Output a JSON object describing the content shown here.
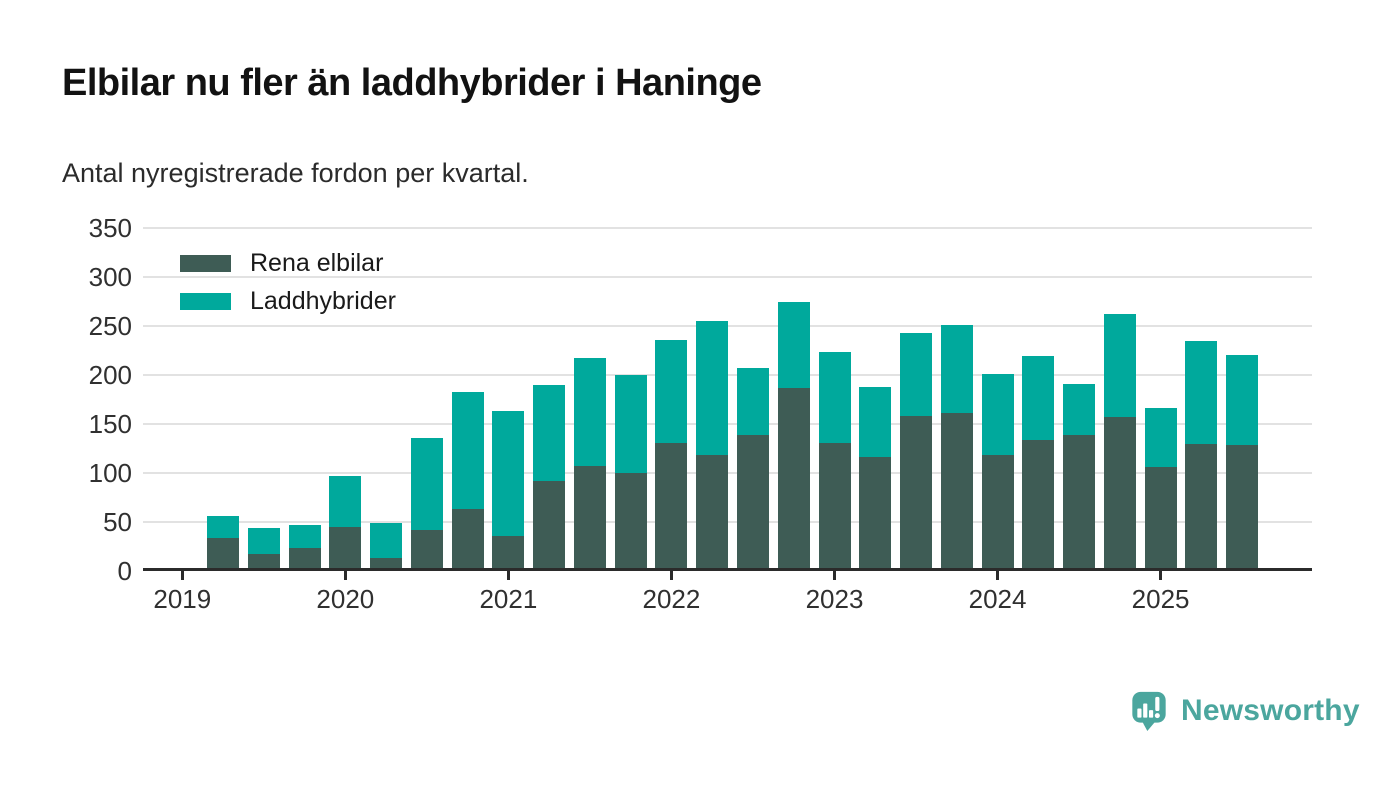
{
  "title": "Elbilar nu fler än laddhybrider i Haninge",
  "subtitle": "Antal nyregistrerade fordon per kvartal.",
  "colors": {
    "elbilar": "#3E5C55",
    "laddhybrider": "#00A99C",
    "grid": "#E2E2E2",
    "axis": "#2B2B2B",
    "brand_teal": "#4BA69E"
  },
  "legend": {
    "items": [
      {
        "label": "Rena elbilar",
        "color": "#3E5C55"
      },
      {
        "label": "Laddhybrider",
        "color": "#00A99C"
      }
    ]
  },
  "footer": {
    "brand_name": "Newsworthy",
    "logo_icon": "newsworthy-pin-barchart-icon"
  },
  "chart_data": {
    "type": "bar",
    "stacked": true,
    "title": "Elbilar nu fler än laddhybrider i Haninge",
    "subtitle": "Antal nyregistrerade fordon per kvartal.",
    "xlabel": "",
    "ylabel": "",
    "ylim": [
      0,
      350
    ],
    "yticks": [
      0,
      50,
      100,
      150,
      200,
      250,
      300,
      350
    ],
    "year_ticks": [
      "2019",
      "2020",
      "2021",
      "2022",
      "2023",
      "2024",
      "2025"
    ],
    "grid": "horizontal",
    "legend_position": "top-left-inside",
    "categories": [
      "2019 Q2",
      "2019 Q3",
      "2019 Q4",
      "2020 Q1",
      "2020 Q2",
      "2020 Q3",
      "2020 Q4",
      "2021 Q1",
      "2021 Q2",
      "2021 Q3",
      "2021 Q4",
      "2022 Q1",
      "2022 Q2",
      "2022 Q3",
      "2022 Q4",
      "2023 Q1",
      "2023 Q2",
      "2023 Q3",
      "2023 Q4",
      "2024 Q1",
      "2024 Q2",
      "2024 Q3",
      "2024 Q4",
      "2025 Q1",
      "2025 Q2",
      "2025 Q3"
    ],
    "series": [
      {
        "name": "Rena elbilar",
        "color": "#3E5C55",
        "values": [
          34,
          17,
          23,
          45,
          13,
          42,
          63,
          36,
          92,
          107,
          100,
          131,
          118,
          139,
          187,
          131,
          116,
          158,
          161,
          118,
          134,
          139,
          157,
          106,
          130,
          129
        ]
      },
      {
        "name": "Laddhybrider",
        "color": "#00A99C",
        "values": [
          22,
          27,
          24,
          52,
          36,
          94,
          120,
          127,
          98,
          110,
          100,
          105,
          137,
          68,
          88,
          93,
          72,
          85,
          90,
          83,
          85,
          52,
          105,
          60,
          105,
          91
        ]
      }
    ],
    "totals": [
      56,
      44,
      47,
      97,
      49,
      136,
      183,
      163,
      190,
      217,
      200,
      236,
      255,
      207,
      275,
      224,
      188,
      243,
      251,
      201,
      219,
      191,
      262,
      166,
      235,
      220
    ]
  }
}
